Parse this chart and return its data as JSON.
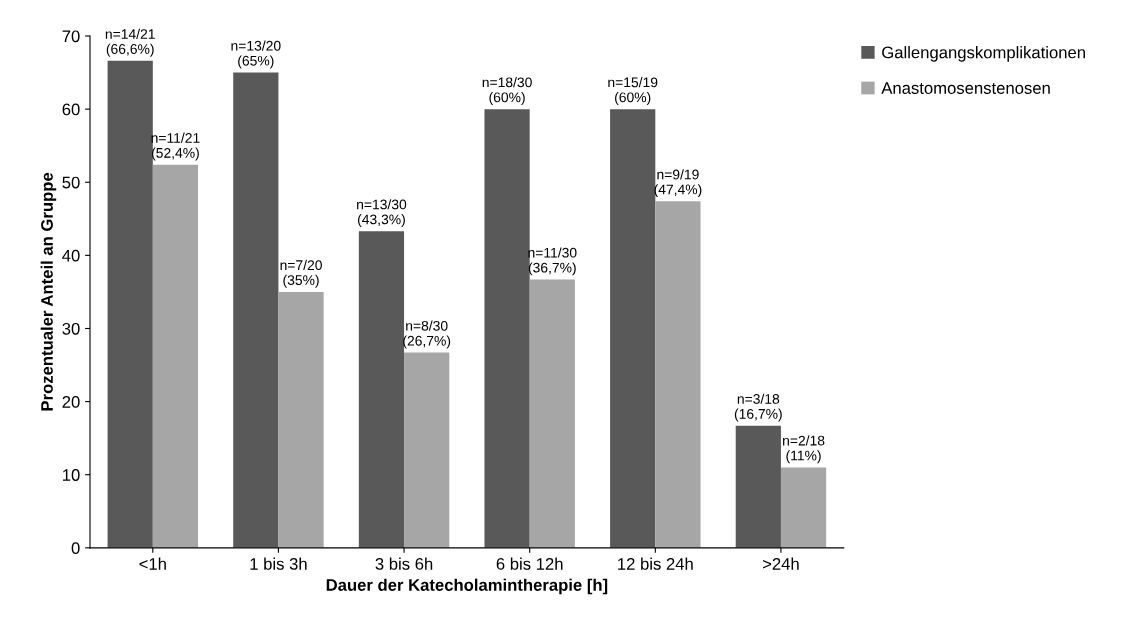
{
  "chart_data": {
    "type": "bar",
    "xlabel": "Dauer der Katecholamintherapie [h]",
    "ylabel": "Prozentualer Anteil an Gruppe",
    "categories": [
      "<1h",
      "1 bis 3h",
      "3 bis 6h",
      "6 bis 12h",
      "12 bis 24h",
      ">24h"
    ],
    "series": [
      {
        "name": "Gallengangskomplikationen",
        "color": "#595959",
        "values": [
          66.6,
          65,
          43.3,
          60,
          60,
          16.7
        ],
        "value_labels": [
          "n=14/21\n(66,6%)",
          "n=13/20\n(65%)",
          "n=13/30\n(43,3%)",
          "n=18/30\n(60%)",
          "n=15/19\n(60%)",
          "n=3/18\n(16,7%)"
        ]
      },
      {
        "name": "Anastomosenstenosen",
        "color": "#a6a6a6",
        "values": [
          52.4,
          35,
          26.7,
          36.7,
          47.4,
          11
        ],
        "value_labels": [
          "n=11/21\n(52,4%)",
          "n=7/20\n(35%)",
          "n=8/30\n(26,7%)",
          "n=11/30\n(36,7%)",
          "n=9/19\n(47,4%)",
          "n=2/18\n(11%)"
        ]
      }
    ],
    "ylim": [
      0,
      70
    ],
    "yticks": [
      0,
      10,
      20,
      30,
      40,
      50,
      60,
      70
    ],
    "grid": false,
    "legend": "top right"
  }
}
